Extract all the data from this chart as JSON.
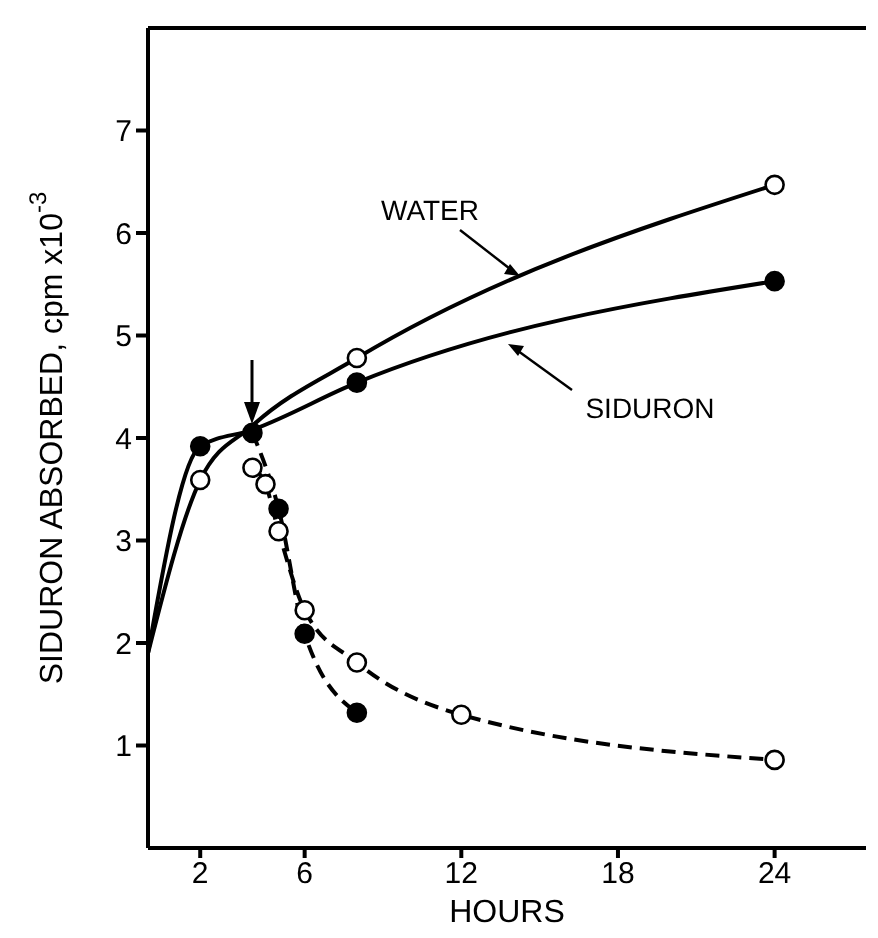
{
  "chart_data": {
    "type": "line",
    "xlabel": "HOURS",
    "ylabel": "SIDURON ABSORBED, cpm x10$^{-3}$",
    "xlim": [
      0,
      27.5
    ],
    "xticks": [
      2,
      6,
      12,
      18,
      24
    ],
    "ylim": [
      0,
      8
    ],
    "yticks": [
      1,
      2,
      3,
      4,
      5,
      6,
      7
    ],
    "grid": false,
    "annotations": [
      "WATER",
      "SIDURON"
    ],
    "series": [
      {
        "type": "line",
        "color": "#000000",
        "marker": "none",
        "line_style": "solid",
        "x": [
          0,
          2,
          4,
          8,
          24
        ],
        "values": [
          1.9,
          3.59,
          4.12,
          4.78,
          6.47
        ]
      },
      {
        "type": "line",
        "color": "#000000",
        "marker": "none",
        "line_style": "solid",
        "x": [
          0,
          2,
          4,
          8,
          24
        ],
        "values": [
          1.9,
          3.92,
          4.08,
          4.54,
          5.53
        ]
      },
      {
        "type": "scatter",
        "color": "#000000",
        "colors": [
          "#ffffff",
          "#ffffff",
          "#ffffff"
        ],
        "marker": "circle",
        "x": [
          2,
          8,
          24
        ],
        "values": [
          3.59,
          4.78,
          6.47
        ]
      },
      {
        "type": "scatter",
        "color": "#000000",
        "marker": "circle",
        "x": [
          2,
          8,
          24
        ],
        "values": [
          3.92,
          4.54,
          5.53
        ]
      },
      {
        "type": "line",
        "color": "#000000",
        "marker": "circle",
        "line_style": "dashed",
        "x": [
          4,
          5,
          6,
          8
        ],
        "values": [
          4.05,
          3.31,
          2.09,
          1.32
        ]
      },
      {
        "type": "line",
        "color": "#000000",
        "colors": [
          "#ffffff",
          "#ffffff",
          "#ffffff",
          "#ffffff",
          "#ffffff",
          "#ffffff",
          "#ffffff"
        ],
        "marker": "circle",
        "line_style": "dashed",
        "x": [
          4,
          4.5,
          5,
          6,
          8,
          12,
          24
        ],
        "values": [
          3.71,
          3.55,
          3.09,
          2.32,
          1.81,
          1.3,
          0.86
        ]
      }
    ]
  }
}
